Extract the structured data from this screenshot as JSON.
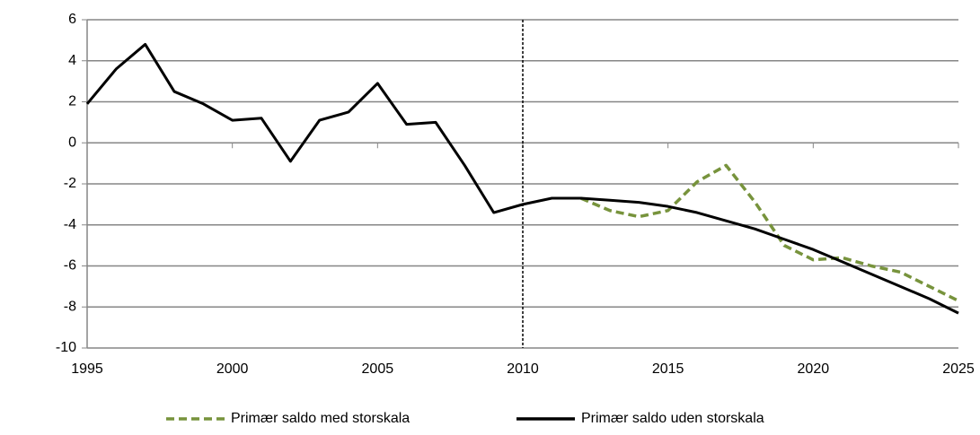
{
  "chart_data": {
    "type": "line",
    "x": [
      1995,
      1996,
      1997,
      1998,
      1999,
      2000,
      2001,
      2002,
      2003,
      2004,
      2005,
      2006,
      2007,
      2008,
      2009,
      2010,
      2011,
      2012,
      2013,
      2014,
      2015,
      2016,
      2017,
      2018,
      2019,
      2020,
      2021,
      2022,
      2023,
      2024,
      2025
    ],
    "series": [
      {
        "name": "Primær saldo med storskala",
        "color": "#77933c",
        "dash": true,
        "values": [
          null,
          null,
          null,
          null,
          null,
          null,
          null,
          null,
          null,
          null,
          null,
          null,
          null,
          null,
          null,
          null,
          null,
          -2.7,
          -3.3,
          -3.6,
          -3.3,
          -1.9,
          -1.1,
          -2.9,
          -5.0,
          -5.7,
          -5.6,
          -6.0,
          -6.3,
          -7.0,
          -7.7
        ]
      },
      {
        "name": "Primær saldo uden storskala",
        "color": "#000000",
        "dash": false,
        "values": [
          1.9,
          3.6,
          4.8,
          2.5,
          1.9,
          1.1,
          1.2,
          -0.9,
          1.1,
          1.5,
          2.9,
          0.9,
          1.0,
          -1.1,
          -3.4,
          -3.0,
          -2.7,
          -2.7,
          -2.8,
          -2.9,
          -3.1,
          -3.4,
          -3.8,
          -4.2,
          -4.7,
          -5.2,
          -5.8,
          -6.4,
          -7.0,
          -7.6,
          -8.3
        ]
      }
    ],
    "xlim": [
      1995,
      2025
    ],
    "xticks": [
      1995,
      2000,
      2005,
      2010,
      2015,
      2020,
      2025
    ],
    "ylim": [
      -10,
      6
    ],
    "yticks": [
      -10,
      -8,
      -6,
      -4,
      -2,
      0,
      2,
      4,
      6
    ],
    "grid": true,
    "vline": 2010,
    "legend": "bottom"
  }
}
